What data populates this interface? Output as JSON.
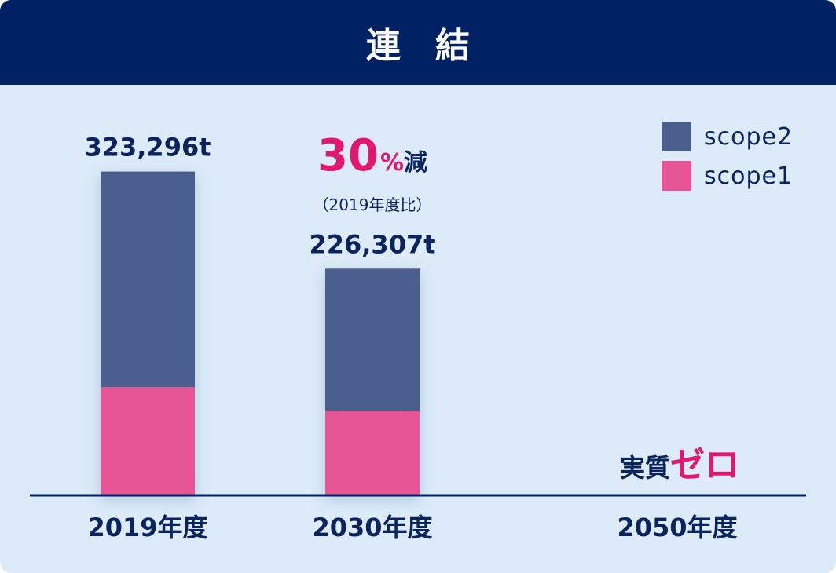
{
  "header": {
    "title": "連結"
  },
  "colors": {
    "header_bg": "#002262",
    "panel_bg": "#dcebf7",
    "scope2": "#4b5f8e",
    "scope1": "#e75596",
    "accent": "#e0196f",
    "text": "#0a2460"
  },
  "chart_data": {
    "type": "bar",
    "stacked": true,
    "title": "",
    "xlabel": "",
    "ylabel": "",
    "categories": [
      "2019年度",
      "2030年度",
      "2050年度"
    ],
    "series": [
      {
        "name": "scope1",
        "values": [
          108000,
          84500,
          0
        ]
      },
      {
        "name": "scope2",
        "values": [
          215296,
          141807,
          0
        ]
      }
    ],
    "totals": [
      323296,
      226307,
      0
    ],
    "total_labels": [
      "323,296t",
      "226,307t",
      ""
    ],
    "ylim": [
      0,
      410000
    ],
    "grid": false,
    "legend": {
      "position": "top-right",
      "order": [
        "scope2",
        "scope1"
      ]
    }
  },
  "annotations": {
    "reduction": {
      "value": "30",
      "unit": "%",
      "suffix": "減",
      "sub": "（2019年度比）"
    },
    "zero": {
      "prefix": "実質",
      "emphasis": "ゼロ"
    }
  }
}
